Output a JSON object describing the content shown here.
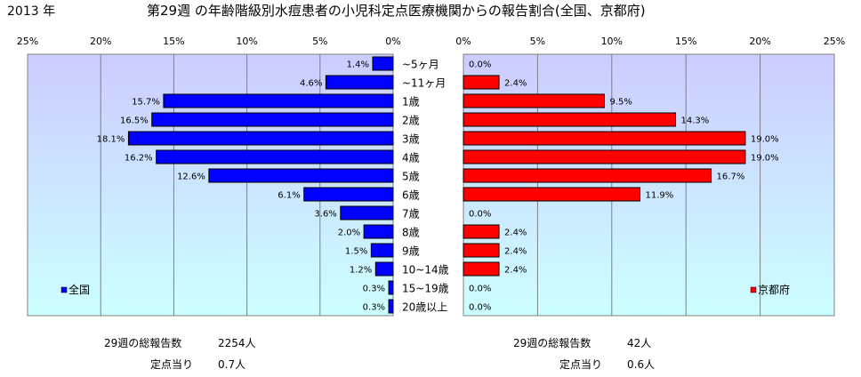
{
  "header": {
    "year": "2013 年",
    "title": "第29週 の年齢階級別水痘患者の小児科定点医療機関からの報告割合(全国、京都府)"
  },
  "chart_data": [
    {
      "type": "bar",
      "orientation": "horizontal",
      "direction": "right-to-left",
      "categories": [
        "~5ヶ月",
        "~11ヶ月",
        "1歳",
        "2歳",
        "3歳",
        "4歳",
        "5歳",
        "6歳",
        "7歳",
        "8歳",
        "9歳",
        "10~14歳",
        "15~19歳",
        "20歳以上"
      ],
      "series": [
        {
          "name": "全国",
          "values": [
            1.4,
            4.6,
            15.7,
            16.5,
            18.1,
            16.2,
            12.6,
            6.1,
            3.6,
            2.0,
            1.5,
            1.2,
            0.3,
            0.3
          ],
          "labels": [
            "1.4%",
            "4.6%",
            "15.7%",
            "16.5%",
            "18.1%",
            "16.2%",
            "12.6%",
            "6.1%",
            "3.6%",
            "2.0%",
            "1.5%",
            "1.2%",
            "0.3%",
            "0.3%"
          ],
          "color": "#0000ff"
        }
      ],
      "xlim": [
        0,
        25
      ],
      "ticks": [
        "25%",
        "20%",
        "15%",
        "10%",
        "5%",
        "0%"
      ],
      "grid": true,
      "legend_position": "bottom-left",
      "plot_background": "#ccccff"
    },
    {
      "type": "bar",
      "orientation": "horizontal",
      "direction": "left-to-right",
      "categories": [
        "~5ヶ月",
        "~11ヶ月",
        "1歳",
        "2歳",
        "3歳",
        "4歳",
        "5歳",
        "6歳",
        "7歳",
        "8歳",
        "9歳",
        "10~14歳",
        "15~19歳",
        "20歳以上"
      ],
      "series": [
        {
          "name": "京都府",
          "values": [
            0.0,
            2.4,
            9.5,
            14.3,
            19.0,
            19.0,
            16.7,
            11.9,
            0.0,
            2.4,
            2.4,
            2.4,
            0.0,
            0.0
          ],
          "labels": [
            "0.0%",
            "2.4%",
            "9.5%",
            "14.3%",
            "19.0%",
            "19.0%",
            "16.7%",
            "11.9%",
            "0.0%",
            "2.4%",
            "2.4%",
            "2.4%",
            "0.0%",
            "0.0%"
          ],
          "color": "#ff0000"
        }
      ],
      "xlim": [
        0,
        25
      ],
      "ticks": [
        "0%",
        "5%",
        "10%",
        "15%",
        "20%",
        "25%"
      ],
      "grid": true,
      "legend_position": "bottom-right",
      "plot_background": "#ccccff"
    }
  ],
  "footer": {
    "national": {
      "reports_label": "29週の総報告数",
      "reports_value": "2254人",
      "per_point_label": "定点当り",
      "per_point_value": "0.7人"
    },
    "kyoto": {
      "reports_label": "29週の総報告数",
      "reports_value": "42人",
      "per_point_label": "定点当り",
      "per_point_value": "0.6人"
    }
  },
  "colors": {
    "national_bar": "#0000ff",
    "kyoto_bar": "#ff0000",
    "plot_top": "#ccccff",
    "plot_bottom": "#ccffff"
  }
}
